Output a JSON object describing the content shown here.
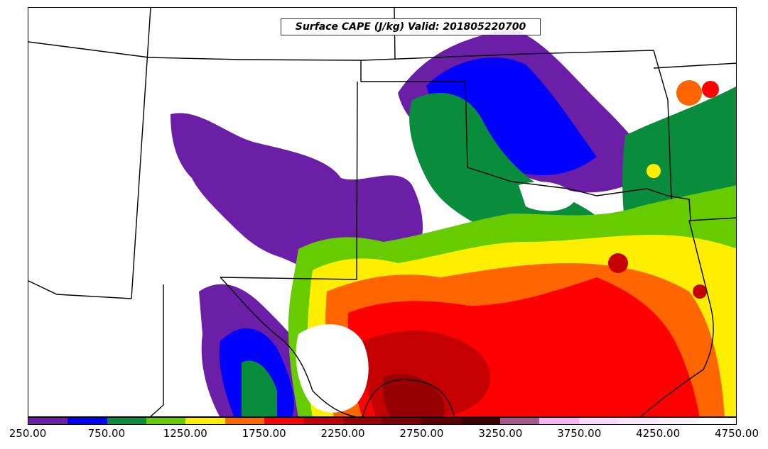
{
  "title": "Surface CAPE (J/kg) Valid: 201805220700",
  "colorbar": {
    "colors": [
      "#6a1fa6",
      "#0000ff",
      "#098c3c",
      "#66cc00",
      "#ffee00",
      "#ff6600",
      "#ff0000",
      "#c40000",
      "#960000",
      "#7a0000",
      "#5c0000",
      "#3d0000",
      "#a05a8c",
      "#f5b4f5",
      "#ffd9ff",
      "#ffe8ff",
      "#fff0ff",
      "#ffffff"
    ],
    "tick_labels": [
      "250.00",
      "750.00",
      "1250.00",
      "1750.00",
      "2250.00",
      "2750.00",
      "3250.00",
      "3750.00",
      "4250.00",
      "4750.00"
    ],
    "min": 250,
    "max": 4750
  },
  "map": {
    "field": "Surface CAPE",
    "units": "J/kg",
    "valid": "201805220700"
  }
}
